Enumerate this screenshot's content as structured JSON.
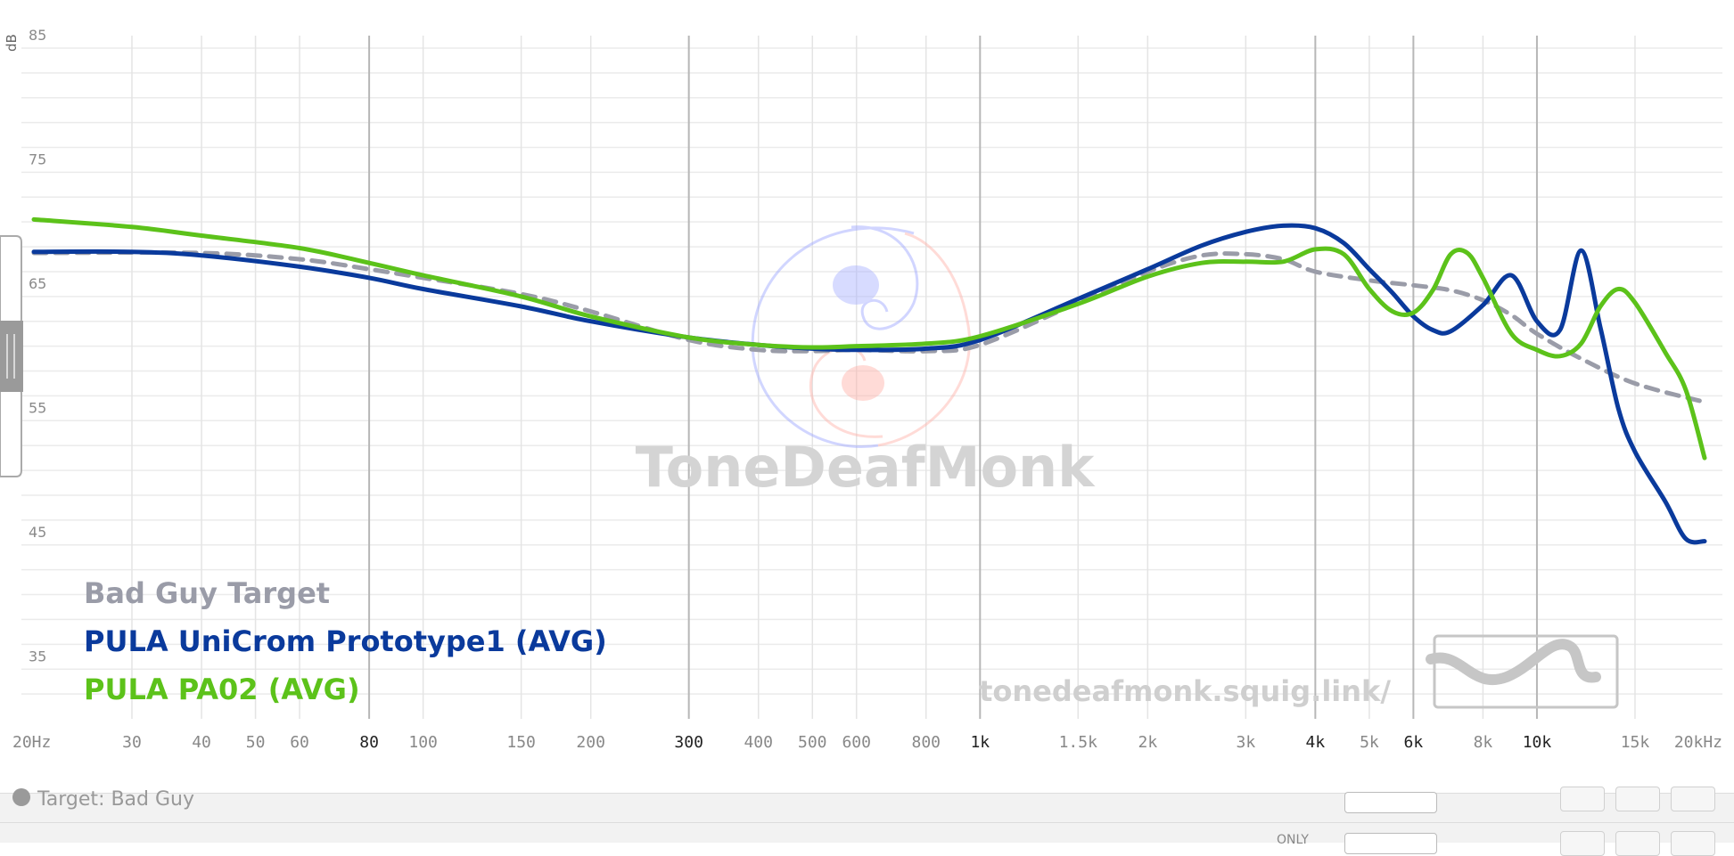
{
  "chart_data": {
    "type": "line",
    "xscale": "log",
    "xlim": [
      20,
      20000
    ],
    "ylim": [
      30,
      85
    ],
    "ylabel": "dB",
    "y_ticks": [
      35,
      45,
      55,
      65,
      75,
      85
    ],
    "x_ticks": [
      {
        "value": 20,
        "label": "20Hz",
        "major": false
      },
      {
        "value": 30,
        "label": "30",
        "major": false
      },
      {
        "value": 40,
        "label": "40",
        "major": false
      },
      {
        "value": 50,
        "label": "50",
        "major": false
      },
      {
        "value": 60,
        "label": "60",
        "major": false
      },
      {
        "value": 80,
        "label": "80",
        "major": true
      },
      {
        "value": 100,
        "label": "100",
        "major": false
      },
      {
        "value": 150,
        "label": "150",
        "major": false
      },
      {
        "value": 200,
        "label": "200",
        "major": false
      },
      {
        "value": 300,
        "label": "300",
        "major": true
      },
      {
        "value": 400,
        "label": "400",
        "major": false
      },
      {
        "value": 500,
        "label": "500",
        "major": false
      },
      {
        "value": 600,
        "label": "600",
        "major": false
      },
      {
        "value": 800,
        "label": "800",
        "major": false
      },
      {
        "value": 1000,
        "label": "1k",
        "major": true
      },
      {
        "value": 1500,
        "label": "1.5k",
        "major": false
      },
      {
        "value": 2000,
        "label": "2k",
        "major": false
      },
      {
        "value": 3000,
        "label": "3k",
        "major": false
      },
      {
        "value": 4000,
        "label": "4k",
        "major": true
      },
      {
        "value": 5000,
        "label": "5k",
        "major": false
      },
      {
        "value": 6000,
        "label": "6k",
        "major": true
      },
      {
        "value": 8000,
        "label": "8k",
        "major": false
      },
      {
        "value": 10000,
        "label": "10k",
        "major": true
      },
      {
        "value": 15000,
        "label": "15k",
        "major": false
      },
      {
        "value": 20000,
        "label": "20kHz",
        "major": false
      }
    ],
    "grid": true,
    "legend": "bottom-left",
    "series": [
      {
        "name": "Bad Guy Target",
        "color": "#9a9ca8",
        "dashed": true,
        "x": [
          20,
          40,
          60,
          80,
          100,
          150,
          200,
          300,
          400,
          500,
          600,
          800,
          1000,
          1500,
          2000,
          2500,
          3000,
          3500,
          4000,
          5000,
          6000,
          7000,
          8000,
          9000,
          10000,
          12000,
          15000,
          20000
        ],
        "y": [
          67.5,
          67.5,
          67.0,
          66.2,
          65.5,
          64.2,
          62.8,
          60.5,
          59.7,
          59.6,
          59.7,
          59.6,
          60.1,
          63.5,
          66.0,
          67.3,
          67.4,
          67.0,
          66.0,
          65.3,
          64.9,
          64.5,
          63.7,
          62.5,
          61.0,
          59.0,
          57.0,
          55.5
        ]
      },
      {
        "name": "PULA UniCrom Prototype1 (AVG)",
        "color": "#0a3a9c",
        "dashed": false,
        "x": [
          20,
          30,
          40,
          60,
          80,
          100,
          150,
          200,
          300,
          400,
          500,
          600,
          800,
          1000,
          1500,
          2000,
          2500,
          3000,
          3500,
          4000,
          4500,
          5000,
          5500,
          6000,
          6500,
          7000,
          8000,
          9000,
          10000,
          11000,
          12000,
          13000,
          14000,
          15000,
          17000,
          18500,
          20000
        ],
        "y": [
          67.6,
          67.6,
          67.3,
          66.4,
          65.5,
          64.6,
          63.2,
          62.0,
          60.7,
          60.1,
          59.8,
          59.7,
          59.8,
          60.5,
          63.8,
          66.2,
          68.1,
          69.2,
          69.7,
          69.5,
          68.3,
          66.2,
          64.3,
          62.4,
          61.3,
          61.2,
          63.3,
          65.7,
          62.0,
          61.3,
          67.7,
          61.5,
          55.0,
          51.5,
          47.5,
          44.5,
          44.3
        ]
      },
      {
        "name": "PULA PA02 (AVG)",
        "color": "#5cc21a",
        "dashed": false,
        "x": [
          20,
          30,
          40,
          60,
          80,
          100,
          150,
          200,
          300,
          400,
          500,
          600,
          800,
          1000,
          1500,
          2000,
          2500,
          3000,
          3500,
          4000,
          4500,
          5000,
          5500,
          6000,
          6500,
          7000,
          7500,
          8000,
          9000,
          10000,
          11000,
          12000,
          13000,
          14000,
          15000,
          17000,
          18500,
          20000
        ],
        "y": [
          70.2,
          69.6,
          68.9,
          67.9,
          66.7,
          65.7,
          64.0,
          62.4,
          60.7,
          60.1,
          59.9,
          60.0,
          60.2,
          60.8,
          63.4,
          65.6,
          66.7,
          66.8,
          66.8,
          67.8,
          67.4,
          64.6,
          62.8,
          62.7,
          64.5,
          67.4,
          67.5,
          65.5,
          61.0,
          59.7,
          59.2,
          60.2,
          63.2,
          64.6,
          63.5,
          59.5,
          56.5,
          51.0
        ]
      }
    ]
  },
  "watermark": {
    "brand": "ToneDeafMonk",
    "url": "tonedeafmonk.squig.link/"
  },
  "bottom_panel": {
    "target_label": "Target: Bad Guy",
    "only_label": "ONLY"
  },
  "colors": {
    "grid_major": "#b7b7b7",
    "grid_minor": "#e4e4e4",
    "watermark_text": "#d4d4d4",
    "tick_text": "#8a8a8a"
  }
}
